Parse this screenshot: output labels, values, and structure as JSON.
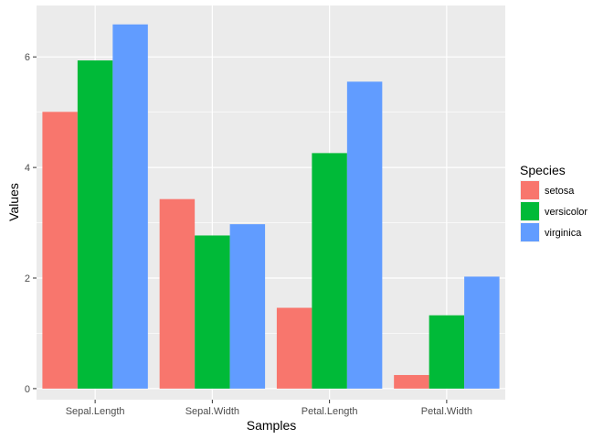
{
  "chart_data": {
    "type": "bar",
    "title": "",
    "xlabel": "Samples",
    "ylabel": "Values",
    "categories": [
      "Sepal.Length",
      "Sepal.Width",
      "Petal.Length",
      "Petal.Width"
    ],
    "ylim": [
      -0.2,
      6.93
    ],
    "yticks": [
      0,
      2,
      4,
      6
    ],
    "ytick_labels": [
      "0",
      "2",
      "4",
      "6"
    ],
    "grid": true,
    "legend": {
      "title": "Species",
      "position": "right"
    },
    "series": [
      {
        "name": "setosa",
        "color": "#F8766D",
        "values": [
          5.006,
          3.428,
          1.462,
          0.246
        ]
      },
      {
        "name": "versicolor",
        "color": "#00BA38",
        "values": [
          5.936,
          2.77,
          4.26,
          1.326
        ]
      },
      {
        "name": "virginica",
        "color": "#619CFF",
        "values": [
          6.588,
          2.974,
          5.552,
          2.026
        ]
      }
    ]
  }
}
